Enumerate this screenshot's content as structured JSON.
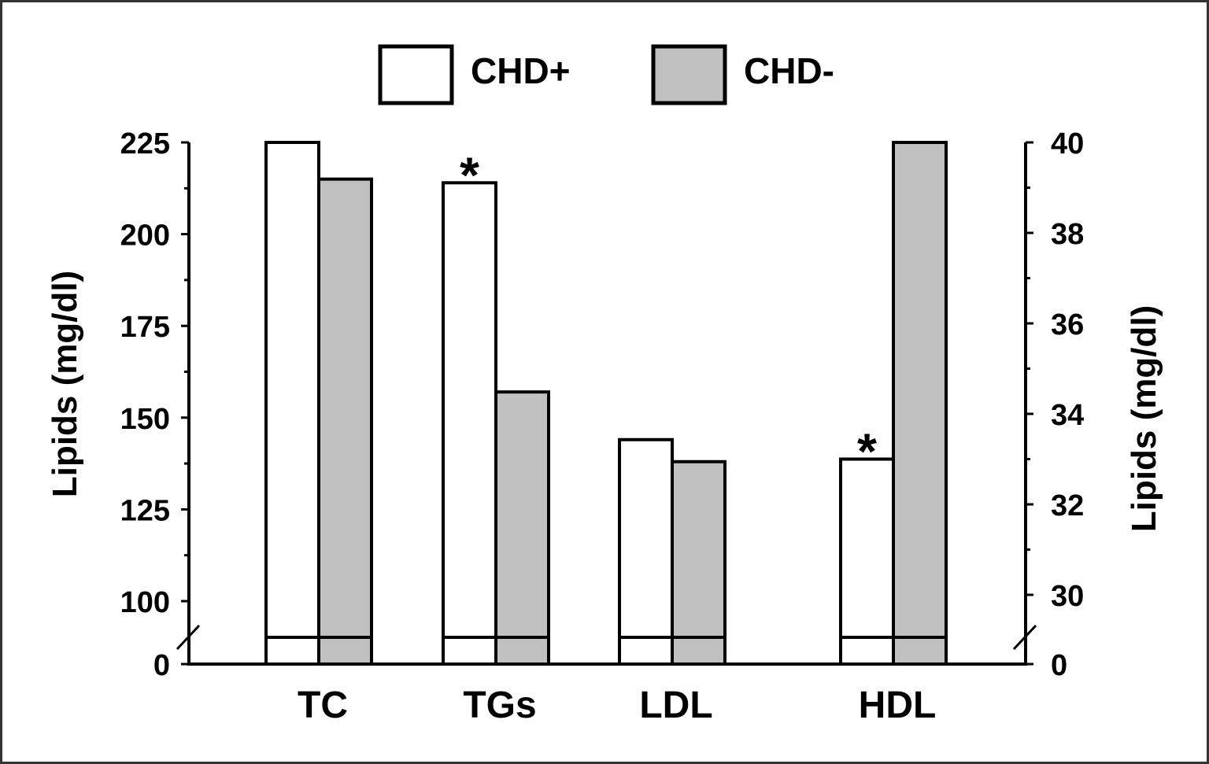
{
  "chart_data": {
    "type": "bar",
    "categories": [
      "TC",
      "TGs",
      "LDL",
      "HDL"
    ],
    "series": [
      {
        "name": "CHD+",
        "values": [
          225,
          214,
          144,
          33
        ],
        "color": "#ffffff"
      },
      {
        "name": "CHD-",
        "values": [
          215,
          157,
          138,
          40
        ],
        "color": "#c0c0c0"
      }
    ],
    "category_axis": [
      "left",
      "left",
      "left",
      "right"
    ],
    "significance_marks": [
      {
        "category": "TGs",
        "series": "CHD+",
        "label": "*"
      },
      {
        "category": "HDL",
        "series": "CHD+",
        "label": "*"
      }
    ],
    "left_axis": {
      "label": "Lipids (mg/dl)",
      "ticks": [
        100,
        125,
        150,
        175,
        200,
        225
      ],
      "break_value": 0,
      "ylim": [
        100,
        225
      ],
      "minor_step": 12.5
    },
    "right_axis": {
      "label": "Lipids (mg/dl)",
      "ticks": [
        30,
        32,
        34,
        36,
        38,
        40
      ],
      "break_value": 0,
      "ylim": [
        30,
        40
      ],
      "minor_step": 1
    },
    "legend": {
      "placement": "top-center",
      "entries": [
        "CHD+",
        "CHD-"
      ]
    },
    "grid": false,
    "axis_break": true
  }
}
